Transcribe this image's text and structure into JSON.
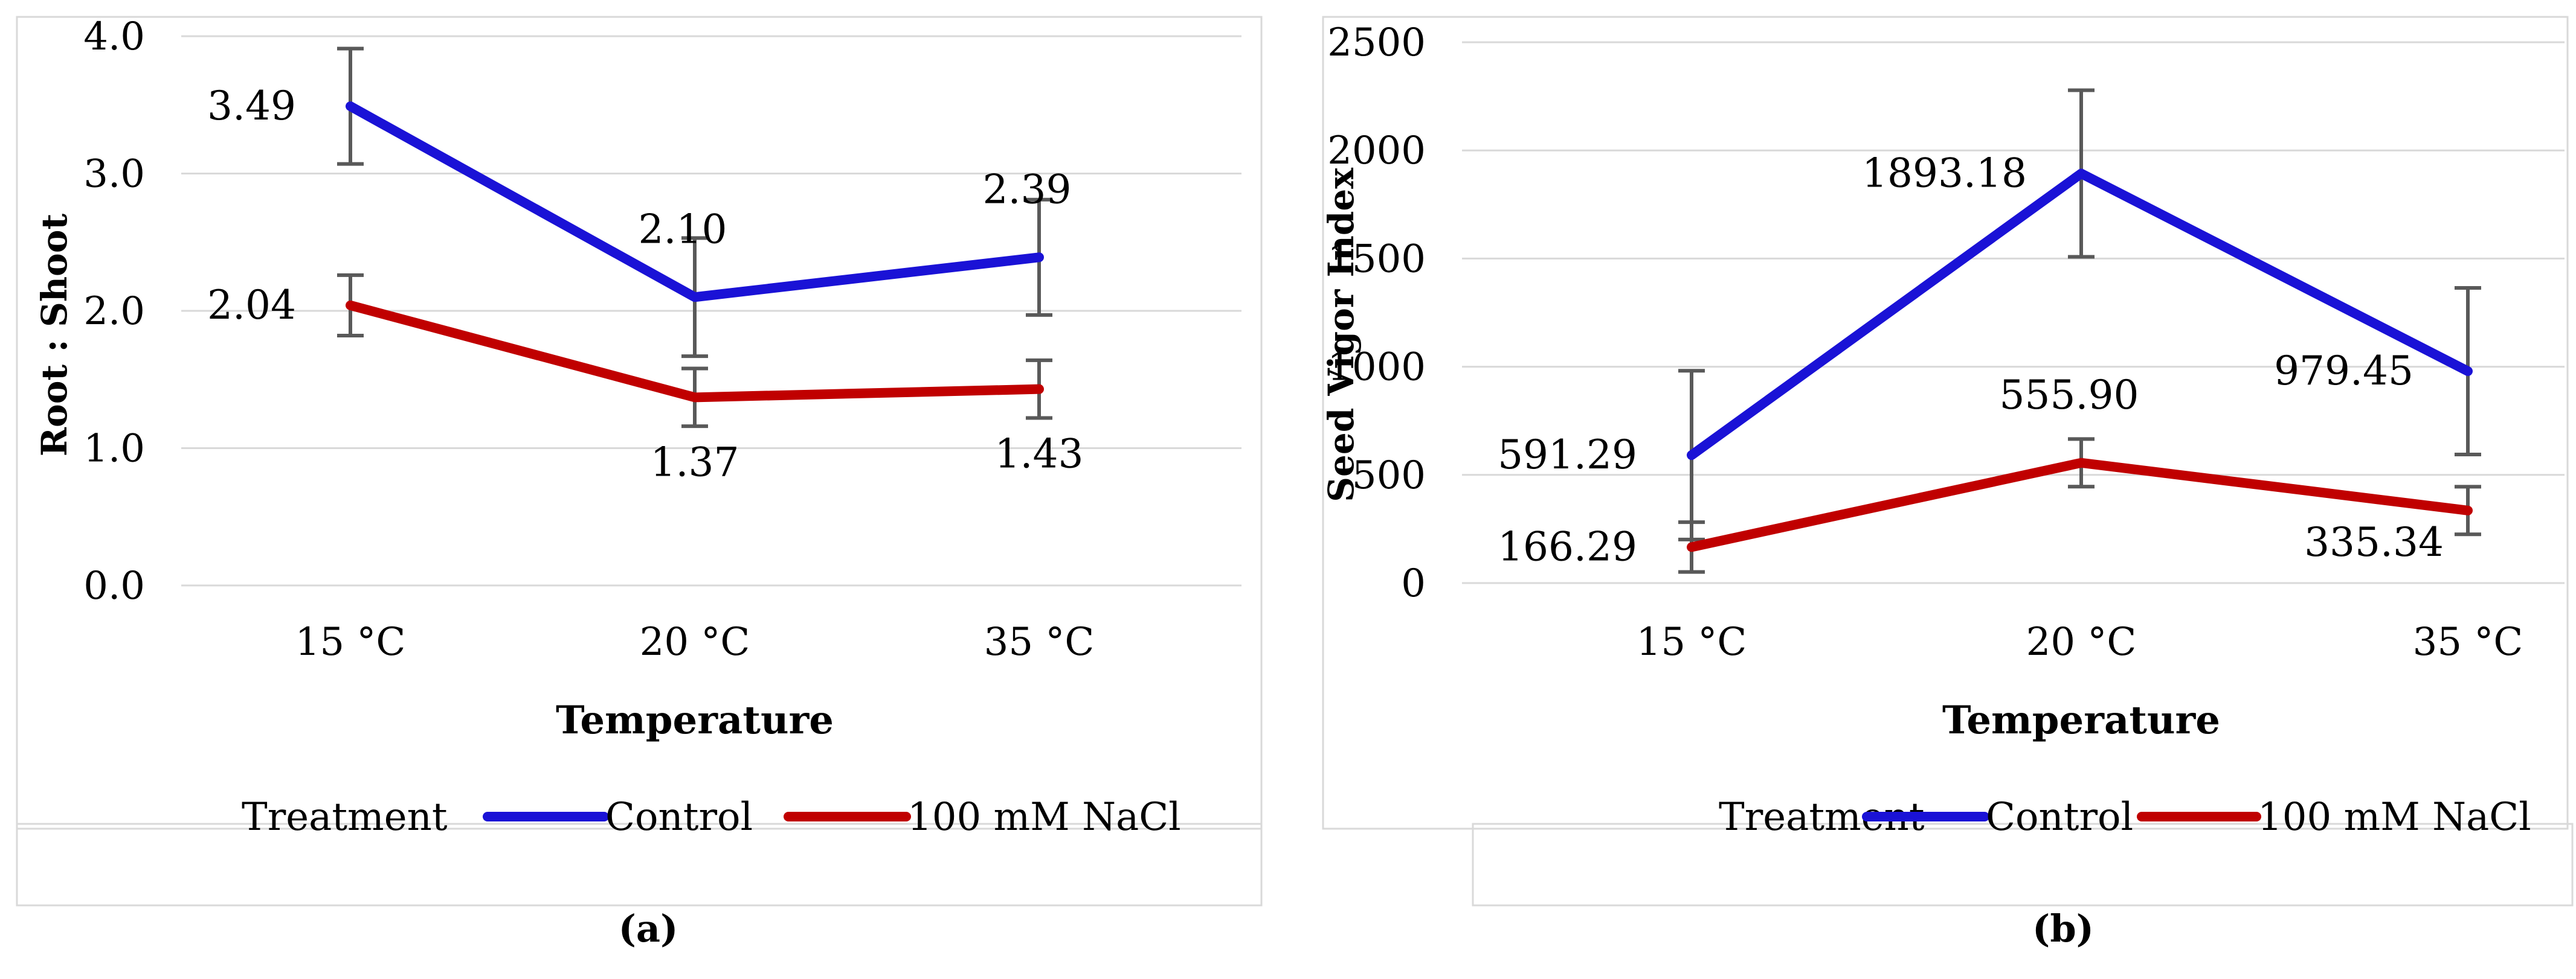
{
  "chart_data": [
    {
      "id": "a",
      "type": "line",
      "panel_label": "(a)",
      "xlabel": "Temperature",
      "ylabel": "Root : Shoot",
      "categories": [
        "15 °C",
        "20 °C",
        "35 °C"
      ],
      "ylim": [
        0,
        4
      ],
      "yticks": [
        "0.0",
        "1.0",
        "2.0",
        "3.0",
        "4.0"
      ],
      "ytick_values": [
        0,
        1,
        2,
        3,
        4
      ],
      "grid": true,
      "legend_title": "Treatment",
      "legend_position": "bottom",
      "series": [
        {
          "name": "Control",
          "color": "#1a12d6",
          "values": [
            3.49,
            2.1,
            2.39
          ],
          "labels": [
            "3.49",
            "2.10",
            "2.39"
          ],
          "error": [
            0.42,
            0.43,
            0.42
          ],
          "label_side": [
            "left",
            "above",
            "above"
          ]
        },
        {
          "name": "100 mM NaCl",
          "color": "#c00000",
          "values": [
            2.04,
            1.37,
            1.43
          ],
          "labels": [
            "2.04",
            "1.37",
            "1.43"
          ],
          "error": [
            0.22,
            0.21,
            0.21
          ],
          "label_side": [
            "left",
            "below",
            "below"
          ]
        }
      ]
    },
    {
      "id": "b",
      "type": "line",
      "panel_label": "(b)",
      "xlabel": "Temperature",
      "ylabel": "Seed Vigor Index",
      "categories": [
        "15 °C",
        "20 °C",
        "35 °C"
      ],
      "ylim": [
        0,
        2500
      ],
      "yticks": [
        "0",
        "500",
        "1000",
        "1500",
        "2000",
        "2500"
      ],
      "ytick_values": [
        0,
        500,
        1000,
        1500,
        2000,
        2500
      ],
      "grid": true,
      "legend_title": "Treatment",
      "legend_position": "bottom",
      "series": [
        {
          "name": "Control",
          "color": "#1a12d6",
          "values": [
            591.29,
            1893.18,
            979.45
          ],
          "labels": [
            "591.29",
            "1893.18",
            "979.45"
          ],
          "error": [
            390,
            385,
            385
          ],
          "label_side": [
            "left",
            "left",
            "left"
          ]
        },
        {
          "name": "100 mM NaCl",
          "color": "#c00000",
          "values": [
            166.29,
            555.9,
            335.34
          ],
          "labels": [
            "166.29",
            "555.90",
            "335.34"
          ],
          "error": [
            115,
            110,
            110
          ],
          "label_side": [
            "left",
            "above",
            "belowleft"
          ]
        }
      ]
    }
  ]
}
